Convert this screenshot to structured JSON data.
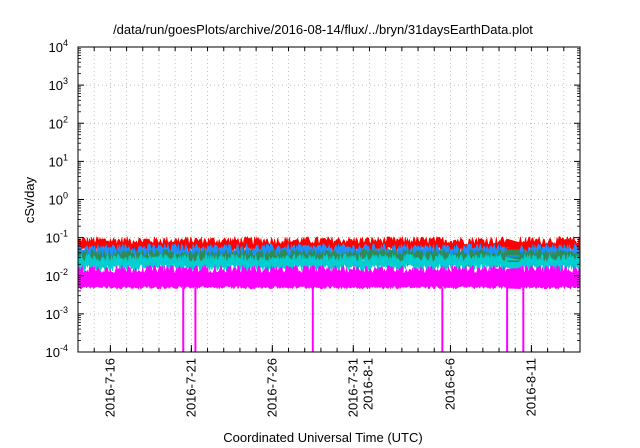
{
  "chart_data": {
    "type": "line",
    "title": "/data/run/goesPlots/archive/2016-08-14/flux/../bryn/31daysEarthData.plot",
    "xlabel": "Coordinated Universal Time (UTC)",
    "ylabel": "cSv/day",
    "y_scale": "log",
    "ylim": [
      0.0001,
      10000
    ],
    "xlim": [
      "2016-07-14",
      "2016-08-14"
    ],
    "grid": true,
    "y_ticks": [
      {
        "value": 0.0001,
        "base": "10",
        "exp": "-4"
      },
      {
        "value": 0.001,
        "base": "10",
        "exp": "-3"
      },
      {
        "value": 0.01,
        "base": "10",
        "exp": "-2"
      },
      {
        "value": 0.1,
        "base": "10",
        "exp": "-1"
      },
      {
        "value": 1,
        "base": "10",
        "exp": "0"
      },
      {
        "value": 10,
        "base": "10",
        "exp": "1"
      },
      {
        "value": 100,
        "base": "10",
        "exp": "2"
      },
      {
        "value": 1000,
        "base": "10",
        "exp": "3"
      },
      {
        "value": 10000,
        "base": "10",
        "exp": "4"
      }
    ],
    "x_ticks": [
      {
        "date": "2016-07-16",
        "lines": [
          "2016-7-16"
        ]
      },
      {
        "date": "2016-07-21",
        "lines": [
          "2016-7-21"
        ]
      },
      {
        "date": "2016-07-26",
        "lines": [
          "2016-7-26"
        ]
      },
      {
        "date": "2016-07-31",
        "lines": [
          "2016-7-31",
          "2016-8-1"
        ]
      },
      {
        "date": "2016-08-06",
        "lines": [
          "2016-8-6"
        ]
      },
      {
        "date": "2016-08-11",
        "lines": [
          "2016-8-11"
        ]
      }
    ],
    "series": [
      {
        "color": "#ff0000",
        "typical": 0.085
      },
      {
        "color": "#1e90ff",
        "typical": 0.055
      },
      {
        "color": "#2e8b57",
        "typical": 0.04
      },
      {
        "color": "#00ced1",
        "typical": 0.03
      },
      {
        "color": "#ff00ff",
        "typical": 0.015,
        "min": 0.005
      }
    ],
    "data_gap": {
      "start": "2016-08-09 12:00",
      "end": "2016-08-10 06:00"
    },
    "drop_dates": [
      "2016-07-20 12:00",
      "2016-07-21 06:00",
      "2016-07-28 12:00",
      "2016-08-05 12:00",
      "2016-08-09 12:00",
      "2016-08-10 12:00"
    ]
  }
}
